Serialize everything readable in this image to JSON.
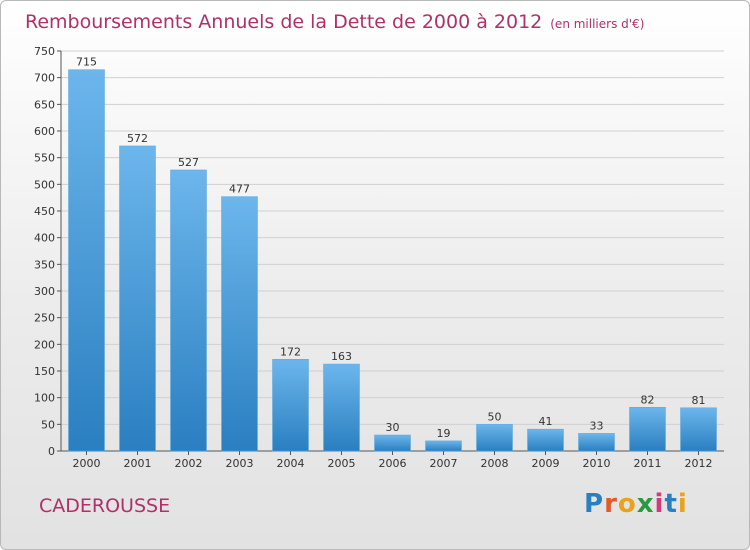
{
  "header": {
    "title": "Remboursements Annuels de la Dette de 2000 à 2012",
    "unit": "(en milliers d'€)"
  },
  "footer": {
    "city": "CADEROUSSE",
    "logo": {
      "letters": [
        "P",
        "r",
        "o",
        "x",
        "i",
        "t",
        "i"
      ],
      "colors": [
        "#2a7fc0",
        "#e05a2c",
        "#e8a21c",
        "#2a9a3f",
        "#d23a7a",
        "#2a7fc0",
        "#e8a21c"
      ]
    }
  },
  "colors": {
    "title": "#b0306a",
    "bar_light": "#6cb6ec",
    "bar_dark": "#2a7fc0",
    "grid": "#d0d0d0"
  },
  "chart_data": {
    "type": "bar",
    "title": "Remboursements Annuels de la Dette de 2000 à 2012",
    "subtitle": "(en milliers d'€)",
    "categories": [
      "2000",
      "2001",
      "2002",
      "2003",
      "2004",
      "2005",
      "2006",
      "2007",
      "2008",
      "2009",
      "2010",
      "2011",
      "2012"
    ],
    "values": [
      715,
      572,
      527,
      477,
      172,
      163,
      30,
      19,
      50,
      41,
      33,
      82,
      81
    ],
    "ylim": [
      0,
      750
    ],
    "yticks": [
      0,
      50,
      100,
      150,
      200,
      250,
      300,
      350,
      400,
      450,
      500,
      550,
      600,
      650,
      700,
      750
    ],
    "grid": true,
    "data_labels": true
  }
}
